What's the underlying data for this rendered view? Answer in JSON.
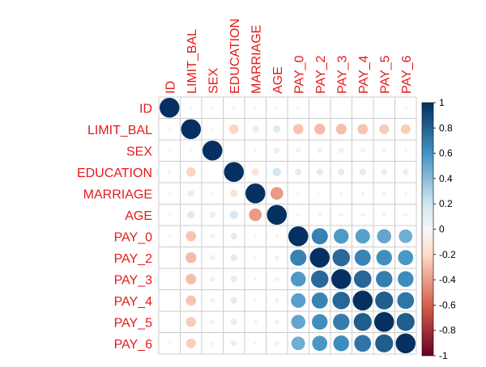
{
  "chart_data": {
    "type": "heatmap",
    "variables": [
      "ID",
      "LIMIT_BAL",
      "SEX",
      "EDUCATION",
      "MARRIAGE",
      "AGE",
      "PAY_0",
      "PAY_2",
      "PAY_3",
      "PAY_4",
      "PAY_5",
      "PAY_6"
    ],
    "matrix": [
      [
        1.0,
        0.03,
        0.02,
        0.04,
        -0.03,
        0.02,
        -0.03,
        0.0,
        -0.01,
        0.0,
        0.0,
        -0.02
      ],
      [
        0.03,
        1.0,
        0.02,
        -0.22,
        -0.11,
        0.14,
        -0.27,
        -0.3,
        -0.29,
        -0.27,
        -0.25,
        -0.24
      ],
      [
        0.02,
        0.02,
        1.0,
        0.01,
        -0.03,
        -0.09,
        -0.06,
        -0.07,
        -0.07,
        -0.06,
        -0.06,
        -0.04
      ],
      [
        0.04,
        -0.22,
        0.01,
        1.0,
        -0.14,
        0.18,
        0.11,
        0.12,
        0.11,
        0.11,
        0.1,
        0.09
      ],
      [
        -0.03,
        -0.11,
        -0.03,
        -0.14,
        1.0,
        -0.41,
        0.02,
        0.02,
        0.03,
        0.03,
        0.04,
        0.03
      ],
      [
        0.02,
        0.14,
        -0.09,
        0.18,
        -0.41,
        1.0,
        -0.04,
        -0.05,
        -0.05,
        -0.05,
        -0.05,
        -0.05
      ],
      [
        -0.03,
        -0.27,
        -0.06,
        0.11,
        0.02,
        -0.04,
        1.0,
        0.67,
        0.57,
        0.54,
        0.51,
        0.47
      ],
      [
        0.0,
        -0.3,
        -0.07,
        0.12,
        0.02,
        -0.05,
        0.67,
        1.0,
        0.77,
        0.66,
        0.62,
        0.58
      ],
      [
        -0.01,
        -0.29,
        -0.07,
        0.11,
        0.03,
        -0.05,
        0.57,
        0.77,
        1.0,
        0.78,
        0.69,
        0.63
      ],
      [
        0.0,
        -0.27,
        -0.06,
        0.11,
        0.03,
        -0.05,
        0.54,
        0.66,
        0.78,
        1.0,
        0.82,
        0.72
      ],
      [
        0.0,
        -0.25,
        -0.06,
        0.1,
        0.04,
        -0.05,
        0.51,
        0.62,
        0.69,
        0.82,
        1.0,
        0.82
      ],
      [
        -0.02,
        -0.24,
        -0.04,
        0.09,
        0.03,
        -0.05,
        0.47,
        0.58,
        0.63,
        0.72,
        0.82,
        1.0
      ]
    ],
    "colorbar": {
      "range": [
        -1,
        1
      ],
      "ticks": [
        "1",
        "0.8",
        "0.6",
        "0.4",
        "0.2",
        "0",
        "-0.2",
        "-0.4",
        "-0.6",
        "-0.8",
        "-1"
      ],
      "tick_values": [
        1,
        0.8,
        0.6,
        0.4,
        0.2,
        0,
        -0.2,
        -0.4,
        -0.6,
        -0.8,
        -1
      ]
    },
    "colors": {
      "label": "#e41a1c",
      "grid": "#cccccc",
      "neg_strong": "#67001f",
      "neg_mid": "#d6604d",
      "neg_light": "#fddbc7",
      "neutral": "#f7f7f7",
      "pos_light": "#d1e5f0",
      "pos_mid": "#4393c3",
      "pos_strong": "#053061"
    },
    "method": "circle",
    "grid": true
  }
}
